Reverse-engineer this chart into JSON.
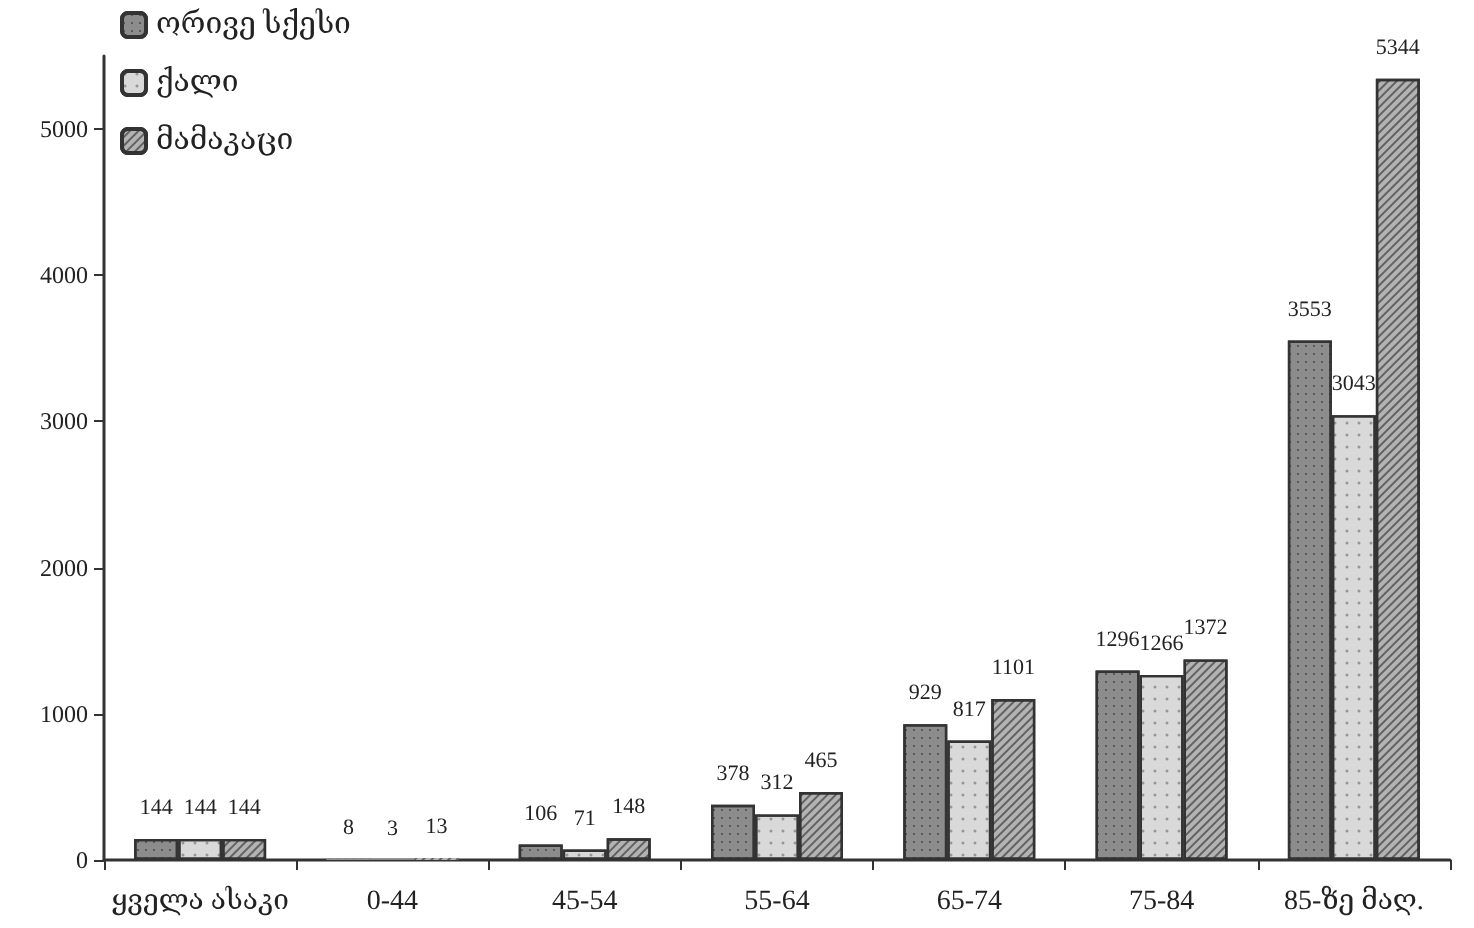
{
  "chart_data": {
    "type": "bar",
    "categories": [
      "ყველა ასაკი",
      "0-44",
      "45-54",
      "55-64",
      "65-74",
      "75-84",
      "85-ზე მაღ."
    ],
    "series": [
      {
        "name": "ორივე სქესი",
        "color": "#8c8c8c",
        "values": [
          144,
          8,
          106,
          378,
          929,
          1296,
          3553
        ]
      },
      {
        "name": "ქალი",
        "color": "#d9d9d9",
        "values": [
          144,
          3,
          71,
          312,
          817,
          1266,
          3043
        ]
      },
      {
        "name": "მამაკაცი",
        "color": "#b3b3b3",
        "values": [
          144,
          13,
          148,
          465,
          1101,
          1372,
          5344
        ]
      }
    ],
    "ylim": [
      0,
      5500
    ],
    "yticks": [
      0,
      1000,
      2000,
      3000,
      4000,
      5000
    ],
    "data_labels": true,
    "grid": false,
    "legend": "top left"
  }
}
